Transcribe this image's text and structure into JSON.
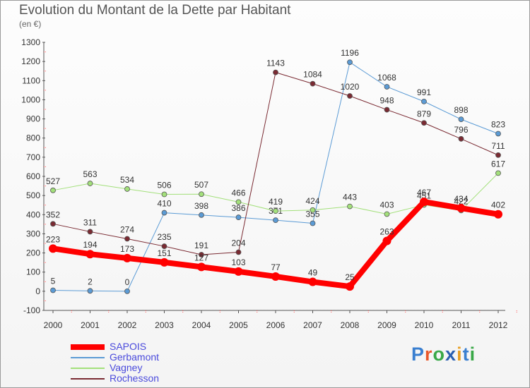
{
  "title": "Evolution du Montant de la Dette par Habitant",
  "subtitle": "(en €)",
  "logo_text": "Proxiti",
  "chart_data": {
    "type": "line",
    "x": [
      "2000",
      "2001",
      "2002",
      "2003",
      "2004",
      "2005",
      "2006",
      "2007",
      "2008",
      "2009",
      "2010",
      "2011",
      "2012"
    ],
    "ylim": [
      -100,
      1300
    ],
    "yticks": [
      -100,
      0,
      100,
      200,
      300,
      400,
      500,
      600,
      700,
      800,
      900,
      1000,
      1100,
      1200,
      1300
    ],
    "grid": false,
    "legend_position": "bottom-left",
    "series": [
      {
        "name": "Gerbamont",
        "color": "#5b9bd5",
        "values": [
          5,
          2,
          0,
          410,
          398,
          386,
          371,
          355,
          1196,
          1068,
          991,
          898,
          823
        ]
      },
      {
        "name": "Vagney",
        "color": "#a3e07b",
        "values": [
          527,
          563,
          534,
          506,
          507,
          466,
          419,
          424,
          443,
          403,
          451,
          422,
          617
        ]
      },
      {
        "name": "Rochesson",
        "color": "#7a2a32",
        "values": [
          352,
          311,
          274,
          235,
          191,
          204,
          1143,
          1084,
          1020,
          948,
          879,
          796,
          711
        ]
      },
      {
        "name": "SAPOIS",
        "color": "#ff0000",
        "values": [
          223,
          194,
          173,
          151,
          127,
          103,
          77,
          49,
          25,
          263,
          467,
          434,
          402
        ]
      }
    ],
    "legend_order": [
      "SAPOIS",
      "Gerbamont",
      "Vagney",
      "Rochesson"
    ]
  }
}
